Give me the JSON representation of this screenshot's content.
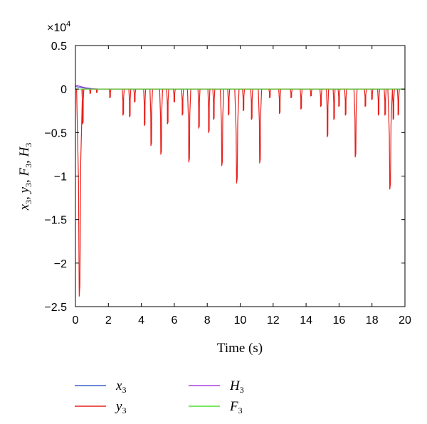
{
  "chart_data": {
    "type": "line",
    "title": "",
    "xlabel": "Time (s)",
    "ylabel": "x3, y3, F3, H3",
    "y_multiplier_label": "×10",
    "y_multiplier_exponent": "4",
    "xlim": [
      0,
      20
    ],
    "ylim": [
      -2.5,
      0.5
    ],
    "x_ticks": [
      0,
      2,
      4,
      6,
      8,
      10,
      12,
      14,
      16,
      18,
      20
    ],
    "y_ticks": [
      0.5,
      0,
      -0.5,
      -1,
      -1.5,
      -2,
      -2.5
    ],
    "x_tick_labels": [
      "0",
      "2",
      "4",
      "6",
      "8",
      "10",
      "12",
      "14",
      "16",
      "18",
      "20"
    ],
    "y_tick_labels": [
      "0.5",
      "0",
      "−0.5",
      "−1",
      "−1.5",
      "−2",
      "−2.5"
    ],
    "grid": false,
    "legend_placement": "bottom",
    "series": [
      {
        "name": "x3",
        "base": "x",
        "sub": "3",
        "color": "#4060c8",
        "x": [
          0,
          0.2,
          0.4,
          0.6,
          0.8,
          1.0,
          1.5,
          2.0,
          20
        ],
        "y": [
          0.03,
          0.02,
          0.015,
          0.01,
          0.005,
          0.0,
          0.0,
          0.0,
          0.0
        ]
      },
      {
        "name": "y3",
        "base": "y",
        "sub": "3",
        "color": "#e8201c",
        "spikes": [
          [
            0.25,
            -2.38
          ],
          [
            0.45,
            -0.4
          ],
          [
            0.9,
            -0.05
          ],
          [
            1.3,
            -0.04
          ],
          [
            2.1,
            -0.1
          ],
          [
            2.9,
            -0.3
          ],
          [
            3.3,
            -0.32
          ],
          [
            3.6,
            -0.15
          ],
          [
            4.2,
            -0.42
          ],
          [
            4.6,
            -0.65
          ],
          [
            5.2,
            -0.75
          ],
          [
            5.6,
            -0.4
          ],
          [
            6.0,
            -0.15
          ],
          [
            6.5,
            -0.3
          ],
          [
            6.9,
            -0.84
          ],
          [
            7.5,
            -0.45
          ],
          [
            8.1,
            -0.5
          ],
          [
            8.4,
            -0.35
          ],
          [
            8.9,
            -0.88
          ],
          [
            9.3,
            -0.3
          ],
          [
            9.8,
            -1.08
          ],
          [
            10.2,
            -0.25
          ],
          [
            10.7,
            -0.35
          ],
          [
            11.2,
            -0.85
          ],
          [
            11.8,
            -0.1
          ],
          [
            12.4,
            -0.28
          ],
          [
            13.1,
            -0.1
          ],
          [
            13.7,
            -0.23
          ],
          [
            14.3,
            -0.08
          ],
          [
            14.9,
            -0.2
          ],
          [
            15.3,
            -0.55
          ],
          [
            15.7,
            -0.35
          ],
          [
            16.0,
            -0.2
          ],
          [
            16.4,
            -0.3
          ],
          [
            17.0,
            -0.78
          ],
          [
            17.6,
            -0.2
          ],
          [
            18.0,
            -0.12
          ],
          [
            18.4,
            -0.3
          ],
          [
            18.8,
            -0.3
          ],
          [
            19.1,
            -1.15
          ],
          [
            19.3,
            -0.35
          ],
          [
            19.6,
            -0.3
          ]
        ]
      },
      {
        "name": "H3",
        "base": "H",
        "sub": "3",
        "color": "#b040e0",
        "x": [
          0,
          0.2,
          0.4,
          0.6,
          0.8,
          1.0,
          1.5,
          2.0,
          20
        ],
        "y": [
          0.04,
          0.035,
          0.025,
          0.015,
          0.01,
          0.005,
          0.0,
          0.0,
          0.0
        ]
      },
      {
        "name": "F3",
        "base": "F",
        "sub": "3",
        "color": "#50e030",
        "x": [
          0,
          20
        ],
        "y": [
          0.0,
          0.0
        ]
      }
    ]
  }
}
